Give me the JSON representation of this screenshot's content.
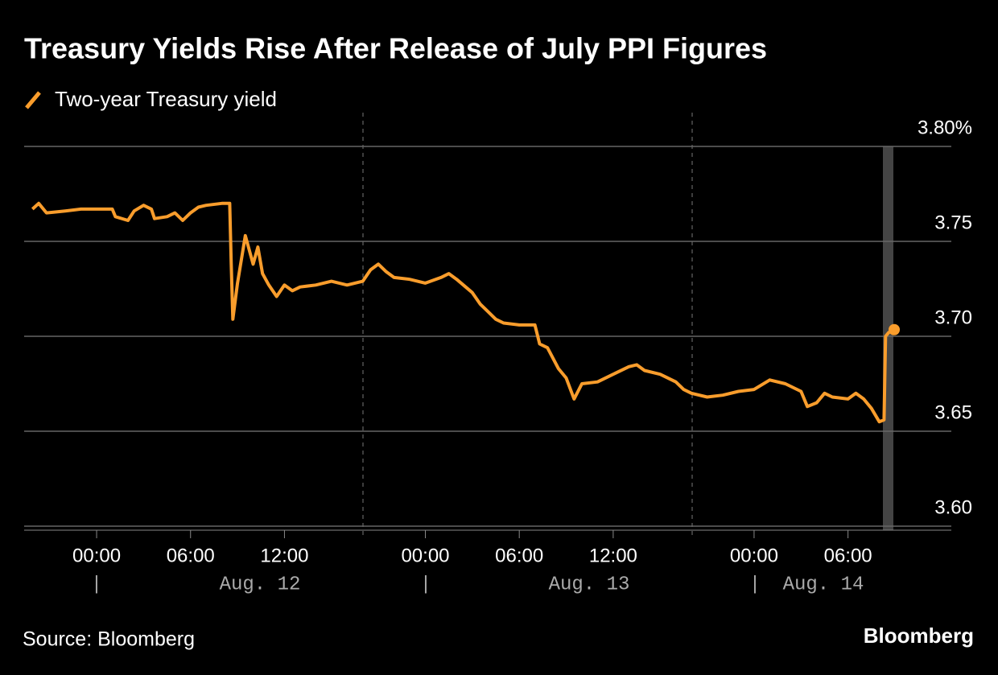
{
  "chart_data": {
    "type": "line",
    "title": "Treasury Yields Rise After Release of July PPI Figures",
    "source": "Source: Bloomberg",
    "brand": "Bloomberg",
    "date_labels": [
      "Aug. 12",
      "Aug. 13",
      "Aug. 14"
    ],
    "x": [
      -4.1,
      -3.7,
      -3.2,
      -2,
      -1,
      0,
      1,
      1.2,
      2,
      2.4,
      3,
      3.5,
      3.7,
      4.5,
      5,
      5.5,
      6,
      6.5,
      7,
      8,
      8.5,
      8.6,
      8.7,
      9,
      9.5,
      10,
      10.3,
      10.6,
      11,
      11.5,
      12,
      12.5,
      13,
      14,
      15,
      16,
      17,
      17.5,
      18,
      18.5,
      19,
      20,
      21,
      22,
      22.5,
      23,
      24,
      24.5,
      25,
      25.5,
      26,
      27,
      28,
      28.3,
      28.8,
      29.5,
      30,
      30.5,
      31,
      32,
      33,
      34,
      34.5,
      35,
      36,
      37,
      37.5,
      38,
      39,
      40,
      41,
      42,
      43,
      44,
      45,
      45.4,
      46,
      46.5,
      47,
      48,
      48.5,
      49,
      49.5,
      50,
      50.3,
      50.4,
      50.6,
      50.95
    ],
    "series": [
      {
        "name": "Two-year Treasury yield",
        "color": "#f99d2c",
        "values": [
          3.767,
          3.77,
          3.765,
          3.766,
          3.767,
          3.767,
          3.767,
          3.763,
          3.761,
          3.766,
          3.769,
          3.767,
          3.762,
          3.763,
          3.765,
          3.761,
          3.765,
          3.768,
          3.769,
          3.77,
          3.77,
          3.738,
          3.709,
          3.728,
          3.753,
          3.738,
          3.747,
          3.733,
          3.727,
          3.721,
          3.727,
          3.724,
          3.726,
          3.727,
          3.729,
          3.727,
          3.729,
          3.735,
          3.738,
          3.734,
          3.731,
          3.73,
          3.728,
          3.731,
          3.733,
          3.73,
          3.723,
          3.717,
          3.713,
          3.709,
          3.707,
          3.706,
          3.706,
          3.696,
          3.694,
          3.683,
          3.678,
          3.667,
          3.675,
          3.676,
          3.68,
          3.684,
          3.685,
          3.682,
          3.68,
          3.676,
          3.672,
          3.67,
          3.668,
          3.669,
          3.671,
          3.672,
          3.677,
          3.675,
          3.671,
          3.663,
          3.665,
          3.67,
          3.668,
          3.667,
          3.67,
          3.667,
          3.662,
          3.655,
          3.656,
          3.7,
          3.702,
          3.7035
        ]
      }
    ],
    "xlim": [
      -4.63,
      54.6
    ],
    "xticks": [
      {
        "value": 0,
        "label": "00:00"
      },
      {
        "value": 6,
        "label": "06:00"
      },
      {
        "value": 12,
        "label": "12:00"
      },
      {
        "value": 21,
        "label": "00:00"
      },
      {
        "value": 27,
        "label": "06:00"
      },
      {
        "value": 33,
        "label": "12:00"
      },
      {
        "value": 42,
        "label": "00:00"
      },
      {
        "value": 48,
        "label": "06:00"
      }
    ],
    "ylim": [
      3.5979,
      3.8
    ],
    "yticks": [
      {
        "value": 3.8,
        "label": "3.80%"
      },
      3.75,
      {
        "value": 3.7,
        "label": "3.70"
      },
      3.65,
      {
        "value": 3.6,
        "label": "3.60"
      }
    ],
    "grid": true
  }
}
